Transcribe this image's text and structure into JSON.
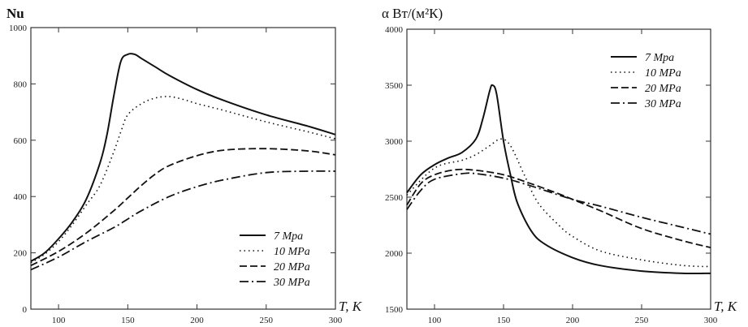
{
  "chart_data": [
    {
      "type": "line",
      "ylabel": "Nu",
      "xlabel": "T, K",
      "xlim": [
        80,
        300
      ],
      "ylim": [
        0,
        1000
      ],
      "xticks": [
        100,
        150,
        200,
        250,
        300
      ],
      "yticks": [
        0,
        200,
        400,
        600,
        800,
        1000
      ],
      "grid": false,
      "legend_position": "bottom-right",
      "series": [
        {
          "name": "7 Mpa",
          "style": "solid",
          "x": [
            80,
            90,
            100,
            110,
            120,
            130,
            135,
            140,
            145,
            150,
            155,
            160,
            170,
            180,
            200,
            220,
            250,
            280,
            300
          ],
          "y": [
            170,
            200,
            250,
            310,
            390,
            520,
            620,
            760,
            880,
            905,
            905,
            890,
            860,
            830,
            780,
            740,
            690,
            650,
            620
          ]
        },
        {
          "name": "10 MPa",
          "style": "dotted",
          "x": [
            80,
            90,
            100,
            110,
            120,
            130,
            140,
            145,
            150,
            160,
            170,
            180,
            190,
            200,
            220,
            250,
            280,
            300
          ],
          "y": [
            165,
            195,
            240,
            300,
            370,
            440,
            560,
            630,
            690,
            730,
            750,
            755,
            745,
            730,
            705,
            665,
            630,
            605
          ]
        },
        {
          "name": "20 MPa",
          "style": "dashed",
          "x": [
            80,
            100,
            120,
            140,
            150,
            160,
            170,
            180,
            200,
            220,
            250,
            280,
            300
          ],
          "y": [
            155,
            205,
            270,
            350,
            395,
            440,
            480,
            510,
            545,
            565,
            570,
            562,
            548
          ]
        },
        {
          "name": "30 MPa",
          "style": "dashdot",
          "x": [
            80,
            100,
            120,
            140,
            150,
            160,
            180,
            200,
            220,
            250,
            280,
            300
          ],
          "y": [
            140,
            185,
            240,
            290,
            320,
            350,
            400,
            435,
            460,
            485,
            490,
            490
          ]
        }
      ]
    },
    {
      "type": "line",
      "ylabel": "α Вт/(м²К)",
      "xlabel": "T, K",
      "xlim": [
        80,
        300
      ],
      "ylim": [
        1500,
        4000
      ],
      "xticks": [
        100,
        150,
        200,
        250,
        300
      ],
      "yticks": [
        1500,
        2000,
        2500,
        3000,
        3500,
        4000
      ],
      "grid": false,
      "legend_position": "top-right",
      "series": [
        {
          "name": "7 Mpa",
          "style": "solid",
          "x": [
            80,
            90,
            100,
            110,
            120,
            130,
            135,
            140,
            142,
            145,
            150,
            155,
            160,
            170,
            180,
            200,
            220,
            250,
            280,
            300
          ],
          "y": [
            2540,
            2700,
            2790,
            2850,
            2900,
            3020,
            3200,
            3450,
            3500,
            3420,
            3000,
            2700,
            2450,
            2200,
            2080,
            1960,
            1890,
            1840,
            1820,
            1820
          ]
        },
        {
          "name": "10 MPa",
          "style": "dotted",
          "x": [
            80,
            100,
            120,
            130,
            140,
            148,
            155,
            165,
            175,
            190,
            200,
            220,
            250,
            280,
            300
          ],
          "y": [
            2520,
            2760,
            2830,
            2880,
            2960,
            3020,
            2960,
            2700,
            2450,
            2250,
            2150,
            2020,
            1940,
            1890,
            1880
          ]
        },
        {
          "name": "20 MPa",
          "style": "dashed",
          "x": [
            80,
            90,
            100,
            115,
            130,
            150,
            170,
            190,
            200,
            220,
            250,
            280,
            300
          ],
          "y": [
            2430,
            2620,
            2700,
            2745,
            2740,
            2700,
            2620,
            2530,
            2480,
            2380,
            2220,
            2110,
            2050
          ]
        },
        {
          "name": "30 MPa",
          "style": "dashdot",
          "x": [
            80,
            90,
            100,
            120,
            130,
            150,
            170,
            200,
            220,
            250,
            280,
            300
          ],
          "y": [
            2390,
            2560,
            2660,
            2710,
            2710,
            2670,
            2600,
            2480,
            2420,
            2320,
            2230,
            2170
          ]
        }
      ]
    }
  ]
}
